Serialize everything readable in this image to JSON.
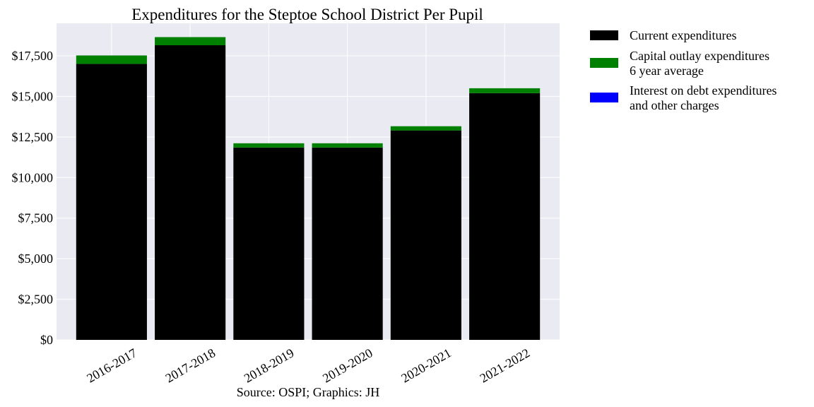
{
  "chart_data": {
    "type": "bar",
    "stacked": true,
    "title": "Expenditures for the Steptoe School District Per Pupil",
    "caption": "Source: OSPI; Graphics: JH",
    "xlabel": "",
    "ylabel": "",
    "categories": [
      "2016-2017",
      "2017-2018",
      "2018-2019",
      "2019-2020",
      "2020-2021",
      "2021-2022"
    ],
    "series": [
      {
        "name": "Current expenditures",
        "color": "#000000",
        "values": [
          17000,
          18150,
          11850,
          11850,
          12900,
          15200
        ]
      },
      {
        "name": "Capital outlay expenditures\n6 year average",
        "color": "#008000",
        "values": [
          520,
          500,
          260,
          260,
          260,
          300
        ]
      },
      {
        "name": "Interest on debt expenditures\nand other charges",
        "color": "#0000ff",
        "values": [
          0,
          0,
          0,
          0,
          0,
          0
        ]
      }
    ],
    "ylim": [
      0,
      19500
    ],
    "yticks": [
      0,
      2500,
      5000,
      7500,
      10000,
      12500,
      15000,
      17500
    ],
    "ytick_labels": [
      "$0",
      "$2,500",
      "$5,000",
      "$7,500",
      "$10,000",
      "$12,500",
      "$15,000",
      "$17,500"
    ],
    "grid": true,
    "legend_position": "outside-right-top",
    "background_color": "#eaeaf2",
    "grid_color": "#ffffff"
  }
}
